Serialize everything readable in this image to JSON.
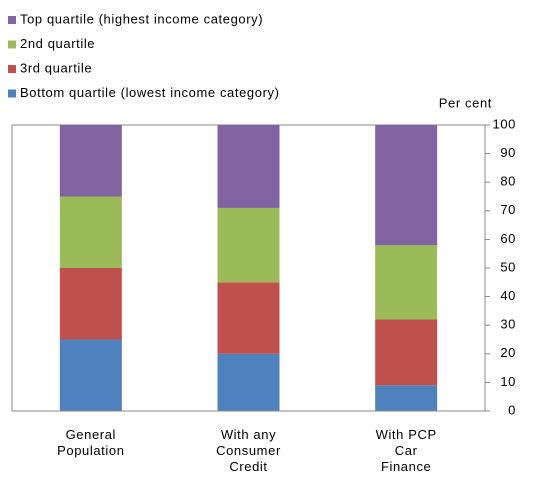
{
  "chart_data": {
    "type": "stacked_bar",
    "y_axis_label": "Per cent",
    "categories": [
      "General\nPopulation",
      "With any\nConsumer\nCredit",
      "With PCP\nCar\nFinance"
    ],
    "series": [
      {
        "name": "Bottom quartile (lowest income category)",
        "color": "#4f81bd",
        "values": [
          25,
          20,
          9
        ]
      },
      {
        "name": "3rd quartile",
        "color": "#c0504d",
        "values": [
          25,
          25,
          23
        ]
      },
      {
        "name": "2nd quartile",
        "color": "#9bbb59",
        "values": [
          25,
          26,
          26
        ]
      },
      {
        "name": "Top quartile (highest income category)",
        "color": "#8064a2",
        "values": [
          25,
          29,
          42
        ]
      }
    ],
    "ylim": [
      0,
      100
    ],
    "yticks": [
      0,
      10,
      20,
      30,
      40,
      50,
      60,
      70,
      80,
      90,
      100
    ],
    "y_axis_side": "right",
    "legend": "top-left",
    "grid": false
  }
}
